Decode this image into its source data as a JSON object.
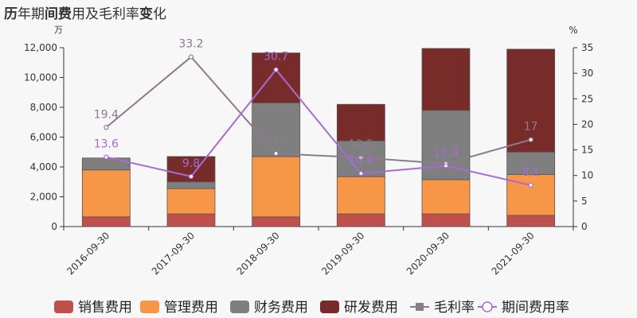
{
  "title": {
    "part1": "历",
    "part2": "年期",
    "part3": "间费",
    "part4": "用及毛利率",
    "part5": "变",
    "part6": "化"
  },
  "colors": {
    "销售费用": "#c0504d",
    "管理费用": "#f79646",
    "财务费用": "#7f7f7f",
    "研发费用": "#772c2a",
    "毛利率": "#8c7b8c",
    "期间费用率": "#a66bd6"
  },
  "chart_data": {
    "type": "bar",
    "title": "历年期间费用及毛利率变化",
    "categories": [
      "2016-09-30",
      "2017-09-30",
      "2018-09-30",
      "2019-09-30",
      "2020-09-30",
      "2021-09-30"
    ],
    "y_left_unit": "万",
    "y_right_unit": "%",
    "y_left": {
      "min": 0,
      "max": 12000,
      "ticks": [
        "0",
        "2,000",
        "4,000",
        "6,000",
        "8,000",
        "10,000",
        "12,000"
      ]
    },
    "y_right": {
      "min": 0,
      "max": 35,
      "ticks": [
        "0",
        "5",
        "10",
        "15",
        "20",
        "25",
        "30",
        "35"
      ]
    },
    "stacked_series": [
      {
        "name": "销售费用",
        "values": [
          650,
          850,
          650,
          850,
          850,
          750
        ]
      },
      {
        "name": "管理费用",
        "values": [
          3150,
          1700,
          4050,
          2500,
          2300,
          2750
        ]
      },
      {
        "name": "财务费用",
        "values": [
          800,
          450,
          3600,
          2400,
          4650,
          1500
        ]
      },
      {
        "name": "研发费用",
        "values": [
          0,
          1700,
          3350,
          2450,
          4150,
          6900
        ]
      }
    ],
    "line_series": [
      {
        "name": "毛利率",
        "values": [
          19.4,
          33.2,
          14.3,
          13.5,
          12.3,
          17
        ],
        "labels": [
          "19.4",
          "33.2",
          "14.3",
          "13.5",
          "",
          "17"
        ]
      },
      {
        "name": "期间费用率",
        "values": [
          13.6,
          9.8,
          30.7,
          10.4,
          11.9,
          8.1
        ],
        "labels": [
          "13.6",
          "9.8",
          "30.7",
          "10.4",
          "11.9",
          "8.1"
        ]
      }
    ],
    "legend": [
      "销售费用",
      "管理费用",
      "财务费用",
      "研发费用",
      "毛利率",
      "期间费用率"
    ],
    "legend_position": "bottom"
  }
}
